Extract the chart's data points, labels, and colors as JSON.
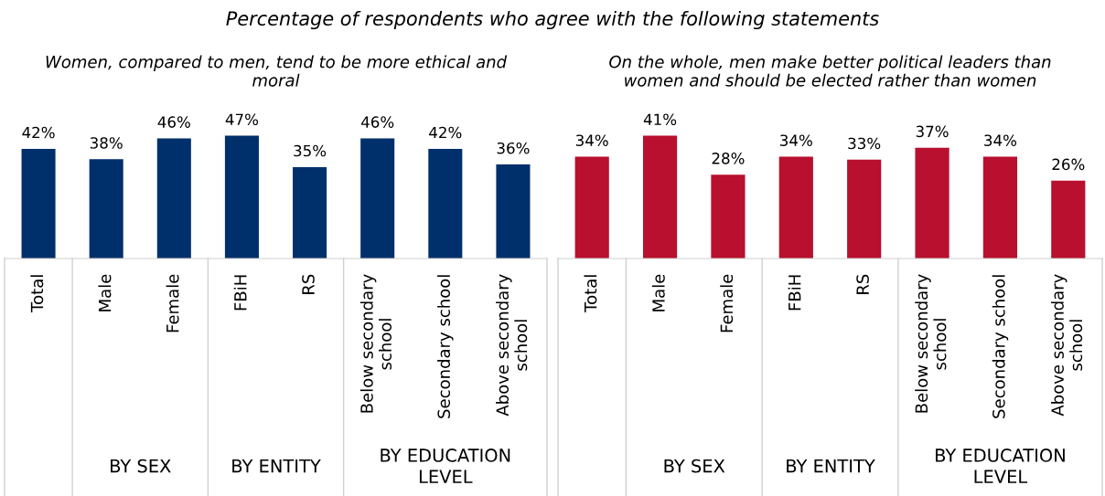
{
  "chart_data": [
    {
      "type": "bar",
      "subtitle": "Percentage of respondents who agree with the following statements",
      "title": "Women, compared to men, tend to be more ethical and moral",
      "categories": [
        "Total",
        "Male",
        "Female",
        "FBiH",
        "RS",
        "Below secondary school",
        "Secondary school",
        "Above secondary school"
      ],
      "values": [
        42,
        38,
        46,
        47,
        35,
        46,
        42,
        36
      ],
      "color": "#00306b",
      "value_labels": [
        "42%",
        "38%",
        "46%",
        "47%",
        "35%",
        "46%",
        "42%",
        "36%"
      ],
      "annotations": [
        "BY SEX",
        "BY ENTITY",
        "BY EDUCATION LEVEL"
      ]
    },
    {
      "type": "bar",
      "title": "On the whole, men make better political leaders than women and should be elected rather than women",
      "categories": [
        "Total",
        "Male",
        "Female",
        "FBiH",
        "RS",
        "Below secondary school",
        "Secondary school",
        "Above secondary school"
      ],
      "values": [
        34,
        41,
        28,
        34,
        33,
        37,
        34,
        26
      ],
      "color": "#b8102e",
      "value_labels": [
        "34%",
        "41%",
        "28%",
        "34%",
        "33%",
        "37%",
        "34%",
        "26%"
      ],
      "annotations": [
        "BY SEX",
        "BY ENTITY",
        "BY EDUCATION LEVEL"
      ]
    }
  ]
}
